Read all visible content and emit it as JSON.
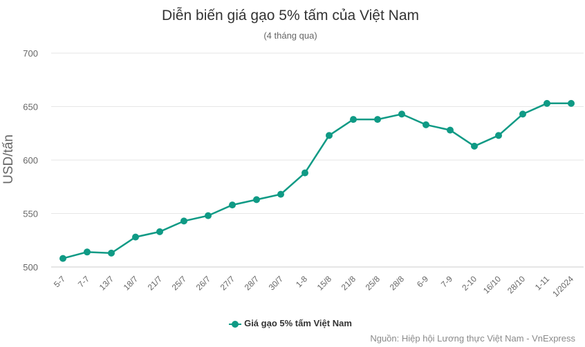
{
  "header": {
    "title": "Diễn biến giá gạo 5% tấm của Việt Nam",
    "subtitle": "(4 tháng qua)"
  },
  "credit": "Nguồn: Hiệp hội Lương thực Việt Nam - VnExpress",
  "colors": {
    "series": "#0f9a85",
    "grid": "#e6e6e6",
    "axis_text": "#666666"
  },
  "chart_data": {
    "type": "line",
    "title": "Diễn biến giá gạo 5% tấm của Việt Nam",
    "subtitle": "(4 tháng qua)",
    "xlabel": "",
    "ylabel": "USD/tấn",
    "ylim": [
      500,
      700
    ],
    "yticks": [
      500,
      550,
      600,
      650,
      700
    ],
    "grid": true,
    "legend_position": "bottom-center",
    "categories": [
      "5-7",
      "7-7",
      "13/7",
      "18/7",
      "21/7",
      "25/7",
      "26/7",
      "27/7",
      "28/7",
      "30/7",
      "1-8",
      "15/8",
      "21/8",
      "25/8",
      "28/8",
      "6-9",
      "7-9",
      "2-10",
      "16/10",
      "28/10",
      "1-11",
      "1/2024"
    ],
    "series": [
      {
        "name": "Giá gạo 5% tấm Việt Nam",
        "values": [
          508,
          514,
          513,
          528,
          533,
          543,
          548,
          558,
          563,
          568,
          588,
          623,
          638,
          638,
          643,
          633,
          628,
          613,
          623,
          643,
          653,
          653
        ]
      }
    ]
  }
}
